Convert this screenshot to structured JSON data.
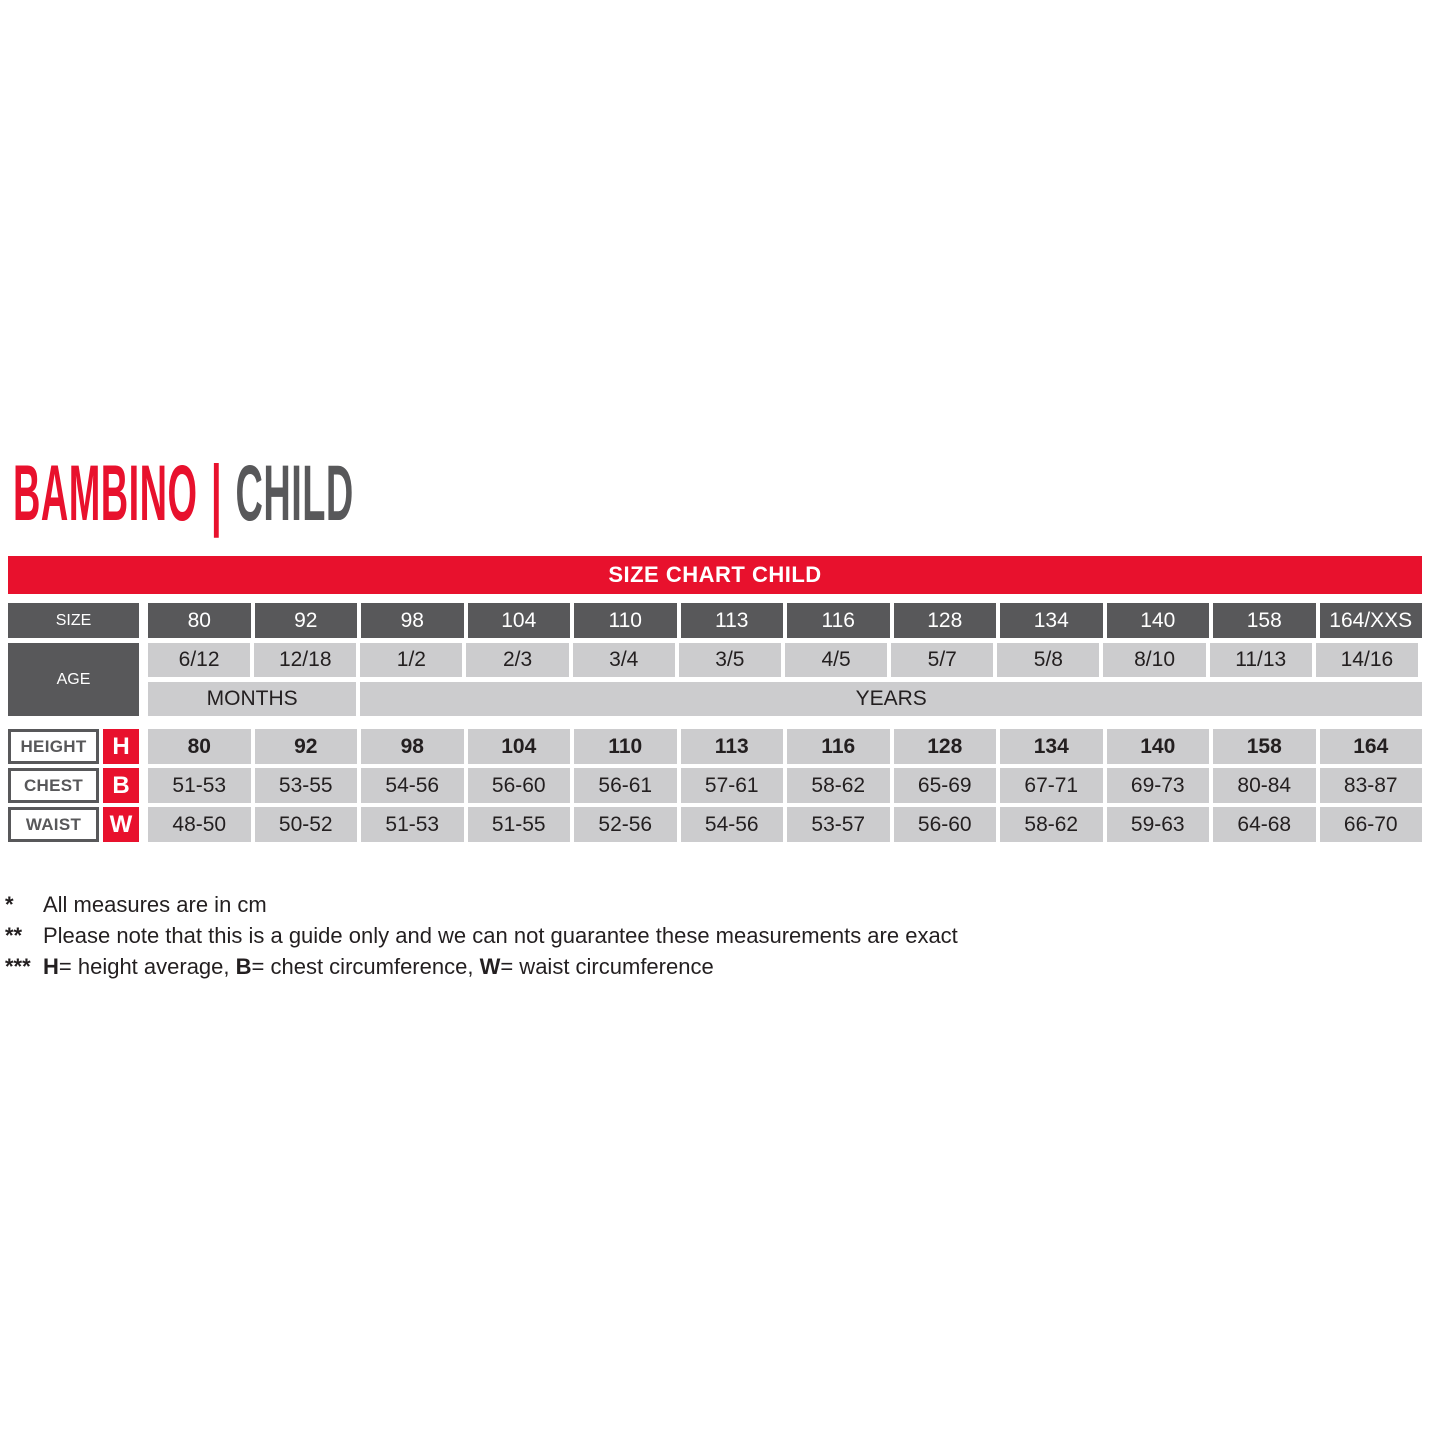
{
  "title": {
    "primary": "BAMBINO",
    "separator": "|",
    "secondary": "CHILD"
  },
  "banner": "SIZE CHART CHILD",
  "table": {
    "size_label": "SIZE",
    "age_label": "AGE",
    "months_label": "MONTHS",
    "years_label": "YEARS",
    "sizes": [
      "80",
      "92",
      "98",
      "104",
      "110",
      "113",
      "116",
      "128",
      "134",
      "140",
      "158",
      "164/XXS"
    ],
    "ages": [
      "6/12",
      "12/18",
      "1/2",
      "2/3",
      "3/4",
      "3/5",
      "4/5",
      "5/7",
      "5/8",
      "8/10",
      "11/13",
      "14/16"
    ],
    "rows": [
      {
        "label": "HEIGHT",
        "letter": "H",
        "values": [
          "80",
          "92",
          "98",
          "104",
          "110",
          "113",
          "116",
          "128",
          "134",
          "140",
          "158",
          "164"
        ]
      },
      {
        "label": "CHEST",
        "letter": "B",
        "values": [
          "51-53",
          "53-55",
          "54-56",
          "56-60",
          "56-61",
          "57-61",
          "58-62",
          "65-69",
          "67-71",
          "69-73",
          "80-84",
          "83-87"
        ]
      },
      {
        "label": "WAIST",
        "letter": "W",
        "values": [
          "48-50",
          "50-52",
          "51-53",
          "51-55",
          "52-56",
          "54-56",
          "53-57",
          "56-60",
          "58-62",
          "59-63",
          "64-68",
          "66-70"
        ]
      }
    ]
  },
  "footnotes": [
    {
      "marker": "*",
      "text": "All measures are in cm"
    },
    {
      "marker": "**",
      "text": "Please note that this is a guide only and we can not guarantee these measurements are exact"
    },
    {
      "marker": "***",
      "parts": [
        {
          "b": "H"
        },
        {
          "t": "= height average, "
        },
        {
          "b": "B"
        },
        {
          "t": "= chest circumference, "
        },
        {
          "b": "W"
        },
        {
          "t": "= waist circumference"
        }
      ]
    }
  ],
  "colors": {
    "accent_red": "#E8112D",
    "dark_gray": "#58585A",
    "light_gray": "#CCCCCE",
    "text": "#231F20"
  }
}
